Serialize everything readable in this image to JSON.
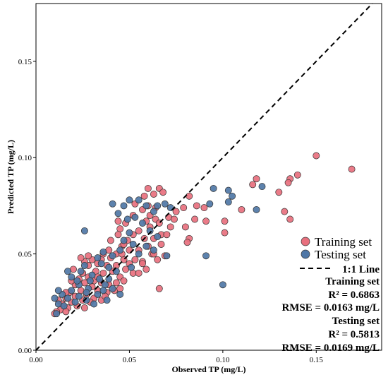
{
  "chart_data": {
    "type": "scatter",
    "xlabel": "Observed TP (mg/L)",
    "ylabel": "Predicted TP (mg/L)",
    "xlim": [
      0,
      0.185
    ],
    "ylim": [
      0,
      0.18
    ],
    "x_ticks": [
      0.0,
      0.05,
      0.1,
      0.15
    ],
    "x_tick_labels": [
      "0.00",
      "0.05",
      "0.10",
      "0.15"
    ],
    "y_ticks": [
      0.0,
      0.05,
      0.1,
      0.15
    ],
    "y_tick_labels": [
      "0.00",
      "0.05",
      "0.10",
      "0.15"
    ],
    "grid": false,
    "legend_position": "bottom-right",
    "reference_line": {
      "label": "1:1 Line",
      "slope": 1,
      "intercept": 0,
      "style": "dashed",
      "color": "#000000"
    },
    "series": [
      {
        "name": "Training set",
        "color": "#e8707e",
        "points": [
          [
            0.169,
            0.094
          ],
          [
            0.15,
            0.101
          ],
          [
            0.14,
            0.091
          ],
          [
            0.136,
            0.089
          ],
          [
            0.135,
            0.087
          ],
          [
            0.13,
            0.082
          ],
          [
            0.133,
            0.072
          ],
          [
            0.136,
            0.068
          ],
          [
            0.118,
            0.089
          ],
          [
            0.116,
            0.086
          ],
          [
            0.11,
            0.073
          ],
          [
            0.101,
            0.067
          ],
          [
            0.101,
            0.061
          ],
          [
            0.091,
            0.067
          ],
          [
            0.085,
            0.068
          ],
          [
            0.082,
            0.08
          ],
          [
            0.086,
            0.075
          ],
          [
            0.079,
            0.074
          ],
          [
            0.071,
            0.069
          ],
          [
            0.074,
            0.068
          ],
          [
            0.08,
            0.064
          ],
          [
            0.082,
            0.058
          ],
          [
            0.066,
            0.084
          ],
          [
            0.068,
            0.082
          ],
          [
            0.06,
            0.084
          ],
          [
            0.063,
            0.081
          ],
          [
            0.058,
            0.08
          ],
          [
            0.06,
            0.075
          ],
          [
            0.064,
            0.074
          ],
          [
            0.057,
            0.073
          ],
          [
            0.061,
            0.07
          ],
          [
            0.064,
            0.068
          ],
          [
            0.066,
            0.066
          ],
          [
            0.059,
            0.067
          ],
          [
            0.055,
            0.062
          ],
          [
            0.061,
            0.064
          ],
          [
            0.067,
            0.06
          ],
          [
            0.063,
            0.058
          ],
          [
            0.058,
            0.058
          ],
          [
            0.052,
            0.06
          ],
          [
            0.048,
            0.066
          ],
          [
            0.045,
            0.063
          ],
          [
            0.044,
            0.067
          ],
          [
            0.052,
            0.07
          ],
          [
            0.049,
            0.057
          ],
          [
            0.044,
            0.06
          ],
          [
            0.04,
            0.057
          ],
          [
            0.046,
            0.054
          ],
          [
            0.05,
            0.052
          ],
          [
            0.055,
            0.052
          ],
          [
            0.06,
            0.054
          ],
          [
            0.062,
            0.05
          ],
          [
            0.057,
            0.046
          ],
          [
            0.053,
            0.047
          ],
          [
            0.047,
            0.047
          ],
          [
            0.043,
            0.05
          ],
          [
            0.039,
            0.052
          ],
          [
            0.035,
            0.047
          ],
          [
            0.038,
            0.044
          ],
          [
            0.043,
            0.044
          ],
          [
            0.048,
            0.042
          ],
          [
            0.052,
            0.04
          ],
          [
            0.045,
            0.038
          ],
          [
            0.041,
            0.041
          ],
          [
            0.036,
            0.04
          ],
          [
            0.033,
            0.045
          ],
          [
            0.03,
            0.047
          ],
          [
            0.028,
            0.044
          ],
          [
            0.032,
            0.041
          ],
          [
            0.028,
            0.038
          ],
          [
            0.025,
            0.04
          ],
          [
            0.031,
            0.036
          ],
          [
            0.035,
            0.035
          ],
          [
            0.039,
            0.034
          ],
          [
            0.043,
            0.035
          ],
          [
            0.047,
            0.036
          ],
          [
            0.042,
            0.031
          ],
          [
            0.038,
            0.03
          ],
          [
            0.033,
            0.031
          ],
          [
            0.03,
            0.033
          ],
          [
            0.026,
            0.035
          ],
          [
            0.023,
            0.037
          ],
          [
            0.021,
            0.034
          ],
          [
            0.024,
            0.031
          ],
          [
            0.027,
            0.029
          ],
          [
            0.031,
            0.027
          ],
          [
            0.035,
            0.026
          ],
          [
            0.029,
            0.025
          ],
          [
            0.025,
            0.026
          ],
          [
            0.021,
            0.028
          ],
          [
            0.018,
            0.03
          ],
          [
            0.016,
            0.027
          ],
          [
            0.019,
            0.025
          ],
          [
            0.022,
            0.023
          ],
          [
            0.026,
            0.022
          ],
          [
            0.017,
            0.022
          ],
          [
            0.014,
            0.024
          ],
          [
            0.013,
            0.021
          ],
          [
            0.016,
            0.02
          ],
          [
            0.011,
            0.02
          ],
          [
            0.01,
            0.019
          ],
          [
            0.012,
            0.026
          ],
          [
            0.02,
            0.042
          ],
          [
            0.026,
            0.046
          ],
          [
            0.024,
            0.048
          ],
          [
            0.057,
            0.045
          ],
          [
            0.065,
            0.047
          ],
          [
            0.069,
            0.049
          ],
          [
            0.067,
            0.055
          ],
          [
            0.07,
            0.06
          ],
          [
            0.081,
            0.056
          ],
          [
            0.09,
            0.074
          ],
          [
            0.072,
            0.064
          ],
          [
            0.075,
            0.072
          ],
          [
            0.053,
            0.076
          ],
          [
            0.047,
            0.055
          ],
          [
            0.036,
            0.05
          ],
          [
            0.04,
            0.048
          ],
          [
            0.033,
            0.038
          ],
          [
            0.037,
            0.028
          ],
          [
            0.055,
            0.04
          ],
          [
            0.066,
            0.032
          ],
          [
            0.028,
            0.049
          ],
          [
            0.019,
            0.036
          ],
          [
            0.016,
            0.03
          ],
          [
            0.063,
            0.05
          ],
          [
            0.059,
            0.042
          ],
          [
            0.045,
            0.032
          ],
          [
            0.05,
            0.045
          ],
          [
            0.046,
            0.05
          ]
        ]
      },
      {
        "name": "Testing set",
        "color": "#4f77a6",
        "points": [
          [
            0.121,
            0.085
          ],
          [
            0.105,
            0.08
          ],
          [
            0.103,
            0.083
          ],
          [
            0.095,
            0.084
          ],
          [
            0.093,
            0.076
          ],
          [
            0.103,
            0.077
          ],
          [
            0.118,
            0.073
          ],
          [
            0.091,
            0.049
          ],
          [
            0.1,
            0.034
          ],
          [
            0.069,
            0.076
          ],
          [
            0.072,
            0.074
          ],
          [
            0.065,
            0.075
          ],
          [
            0.063,
            0.072
          ],
          [
            0.059,
            0.075
          ],
          [
            0.055,
            0.078
          ],
          [
            0.05,
            0.078
          ],
          [
            0.047,
            0.075
          ],
          [
            0.041,
            0.076
          ],
          [
            0.044,
            0.071
          ],
          [
            0.049,
            0.068
          ],
          [
            0.053,
            0.069
          ],
          [
            0.057,
            0.066
          ],
          [
            0.061,
            0.062
          ],
          [
            0.065,
            0.059
          ],
          [
            0.05,
            0.061
          ],
          [
            0.047,
            0.057
          ],
          [
            0.052,
            0.055
          ],
          [
            0.059,
            0.054
          ],
          [
            0.063,
            0.052
          ],
          [
            0.07,
            0.049
          ],
          [
            0.045,
            0.052
          ],
          [
            0.041,
            0.049
          ],
          [
            0.036,
            0.051
          ],
          [
            0.033,
            0.048
          ],
          [
            0.035,
            0.045
          ],
          [
            0.039,
            0.043
          ],
          [
            0.043,
            0.041
          ],
          [
            0.026,
            0.062
          ],
          [
            0.026,
            0.044
          ],
          [
            0.024,
            0.041
          ],
          [
            0.03,
            0.039
          ],
          [
            0.034,
            0.037
          ],
          [
            0.037,
            0.034
          ],
          [
            0.041,
            0.032
          ],
          [
            0.045,
            0.029
          ],
          [
            0.038,
            0.026
          ],
          [
            0.033,
            0.029
          ],
          [
            0.028,
            0.032
          ],
          [
            0.023,
            0.034
          ],
          [
            0.019,
            0.031
          ],
          [
            0.023,
            0.028
          ],
          [
            0.027,
            0.026
          ],
          [
            0.031,
            0.024
          ],
          [
            0.021,
            0.025
          ],
          [
            0.017,
            0.027
          ],
          [
            0.014,
            0.029
          ],
          [
            0.012,
            0.031
          ],
          [
            0.01,
            0.027
          ],
          [
            0.012,
            0.024
          ],
          [
            0.015,
            0.023
          ],
          [
            0.011,
            0.019
          ],
          [
            0.019,
            0.038
          ],
          [
            0.017,
            0.041
          ],
          [
            0.051,
            0.043
          ],
          [
            0.055,
            0.05
          ],
          [
            0.036,
            0.031
          ],
          [
            0.039,
            0.037
          ],
          [
            0.029,
            0.036
          ],
          [
            0.027,
            0.03
          ],
          [
            0.022,
            0.036
          ]
        ]
      }
    ],
    "annotations": [
      {
        "heading": "Training set",
        "lines": [
          "R² = 0.6863",
          "RMSE = 0.0163 mg/L"
        ]
      },
      {
        "heading": "Testing set",
        "lines": [
          "R² = 0.5813",
          "RMSE = 0.0169 mg/L"
        ]
      }
    ]
  }
}
